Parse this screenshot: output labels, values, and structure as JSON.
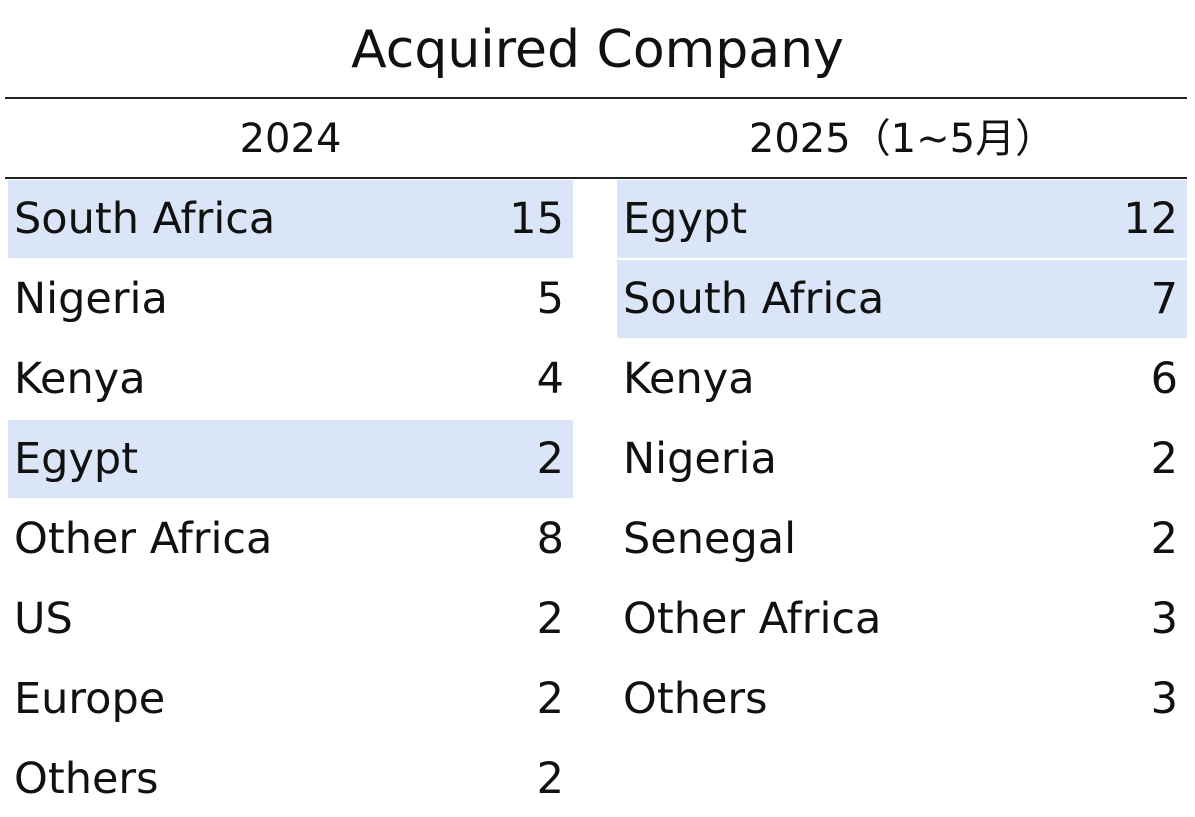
{
  "title": "Acquired Company",
  "highlight_color": "#dae6f7",
  "columns": [
    {
      "header": "2024",
      "rows": [
        {
          "name": "South Africa",
          "value": 15,
          "highlight": true
        },
        {
          "name": "Nigeria",
          "value": 5,
          "highlight": false
        },
        {
          "name": "Kenya",
          "value": 4,
          "highlight": false
        },
        {
          "name": "Egypt",
          "value": 2,
          "highlight": true
        },
        {
          "name": "Other Africa",
          "value": 8,
          "highlight": false
        },
        {
          "name": "US",
          "value": 2,
          "highlight": false
        },
        {
          "name": "Europe",
          "value": 2,
          "highlight": false
        },
        {
          "name": "Others",
          "value": 2,
          "highlight": false
        }
      ]
    },
    {
      "header": "2025（1~5月）",
      "rows": [
        {
          "name": "Egypt",
          "value": 12,
          "highlight": true
        },
        {
          "name": "South Africa",
          "value": 7,
          "highlight": true
        },
        {
          "name": "Kenya",
          "value": 6,
          "highlight": false
        },
        {
          "name": "Nigeria",
          "value": 2,
          "highlight": false
        },
        {
          "name": "Senegal",
          "value": 2,
          "highlight": false
        },
        {
          "name": "Other Africa",
          "value": 3,
          "highlight": false
        },
        {
          "name": "Others",
          "value": 3,
          "highlight": false
        }
      ]
    }
  ]
}
